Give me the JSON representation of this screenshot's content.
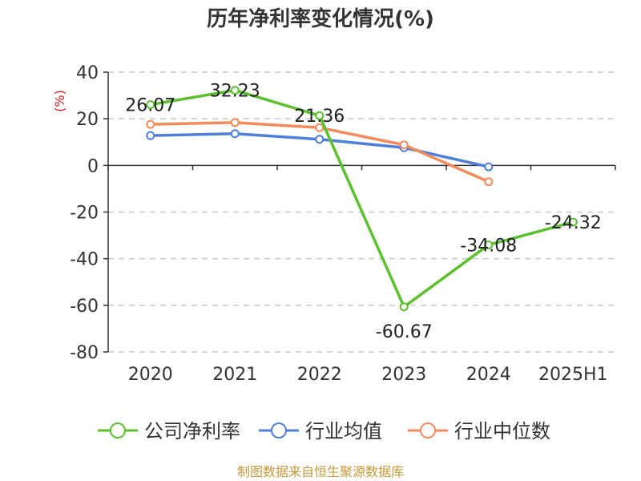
{
  "chart_data": {
    "type": "line",
    "title": "历年净利率变化情况(%)",
    "ylabel": "(%)",
    "xlabel": "",
    "categories": [
      "2020",
      "2021",
      "2022",
      "2023",
      "2024",
      "2025H1"
    ],
    "ylim": [
      -80,
      40
    ],
    "yticks": [
      40,
      20,
      0,
      -20,
      -40,
      -60,
      -80
    ],
    "grid": true,
    "legend_position": "bottom",
    "series": [
      {
        "name": "公司净利率",
        "color": "#5cc02e",
        "values": [
          26.07,
          32.23,
          21.36,
          -60.67,
          -34.08,
          -24.32
        ],
        "labels": [
          "26.07",
          "32.23",
          "21.36",
          "-60.67",
          "-34.08",
          "-24.32"
        ]
      },
      {
        "name": "行业均值",
        "color": "#4f7fdc",
        "values": [
          12.8,
          13.6,
          11.2,
          7.6,
          -0.6,
          null
        ]
      },
      {
        "name": "行业中位数",
        "color": "#f58a5a",
        "values": [
          17.6,
          18.4,
          16.2,
          8.8,
          -7.0,
          null
        ]
      }
    ]
  },
  "source": "制图数据来自恒生聚源数据库"
}
